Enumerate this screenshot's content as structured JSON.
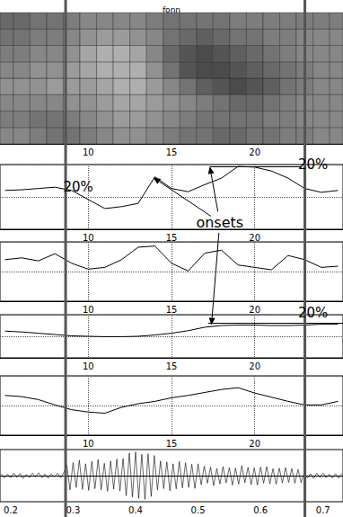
{
  "chart_data": [
    {
      "type": "heatmap",
      "title": "fonn",
      "x": [
        5,
        6,
        7,
        8,
        9,
        10,
        11,
        12,
        13,
        14,
        15,
        16,
        17,
        18,
        19,
        20,
        21,
        22,
        23,
        24,
        25
      ],
      "values": [
        [
          0.5,
          0.55,
          0.5,
          0.45,
          0.5,
          0.55,
          0.6,
          0.65
        ],
        [
          0.5,
          0.55,
          0.5,
          0.45,
          0.5,
          0.55,
          0.6,
          0.65
        ],
        [
          0.55,
          0.6,
          0.5,
          0.45,
          0.45,
          0.5,
          0.55,
          0.6
        ],
        [
          0.6,
          0.6,
          0.5,
          0.4,
          0.45,
          0.5,
          0.55,
          0.6
        ],
        [
          0.6,
          0.55,
          0.45,
          0.4,
          0.4,
          0.45,
          0.5,
          0.55
        ],
        [
          0.55,
          0.5,
          0.45,
          0.4,
          0.35,
          0.35,
          0.45,
          0.5
        ],
        [
          0.5,
          0.45,
          0.4,
          0.35,
          0.3,
          0.3,
          0.4,
          0.5
        ],
        [
          0.45,
          0.4,
          0.35,
          0.3,
          0.3,
          0.3,
          0.4,
          0.5
        ],
        [
          0.45,
          0.4,
          0.35,
          0.3,
          0.3,
          0.35,
          0.45,
          0.5
        ],
        [
          0.5,
          0.45,
          0.4,
          0.4,
          0.45,
          0.5,
          0.5,
          0.55
        ],
        [
          0.55,
          0.5,
          0.45,
          0.5,
          0.6,
          0.65,
          0.6,
          0.6
        ],
        [
          0.6,
          0.55,
          0.5,
          0.6,
          0.75,
          0.75,
          0.65,
          0.6
        ],
        [
          0.6,
          0.6,
          0.55,
          0.7,
          0.8,
          0.8,
          0.7,
          0.6
        ],
        [
          0.65,
          0.6,
          0.6,
          0.75,
          0.8,
          0.75,
          0.65,
          0.6
        ],
        [
          0.65,
          0.6,
          0.65,
          0.8,
          0.75,
          0.7,
          0.6,
          0.55
        ],
        [
          0.6,
          0.6,
          0.65,
          0.75,
          0.7,
          0.65,
          0.6,
          0.55
        ],
        [
          0.6,
          0.55,
          0.6,
          0.7,
          0.65,
          0.6,
          0.55,
          0.55
        ],
        [
          0.55,
          0.55,
          0.55,
          0.6,
          0.6,
          0.55,
          0.55,
          0.55
        ],
        [
          0.55,
          0.5,
          0.5,
          0.55,
          0.55,
          0.5,
          0.5,
          0.55
        ],
        [
          0.5,
          0.5,
          0.5,
          0.5,
          0.5,
          0.5,
          0.5,
          0.55
        ],
        [
          0.5,
          0.5,
          0.5,
          0.5,
          0.5,
          0.5,
          0.5,
          0.55
        ]
      ],
      "color_range": [
        0,
        1
      ],
      "xlim": [
        4.7,
        25.3
      ],
      "xticks": [
        10,
        15,
        20
      ],
      "ylim": [
        0,
        8
      ],
      "grid": false,
      "tick_labels": "x"
    },
    {
      "type": "line",
      "color": "#000000",
      "x": [
        5,
        6,
        7,
        8,
        9,
        10,
        11,
        12,
        13,
        14,
        15,
        16,
        17,
        18,
        19,
        20,
        21,
        22,
        23,
        24,
        25
      ],
      "values": [
        60,
        61,
        63,
        65,
        60,
        46,
        32,
        35,
        40,
        81,
        63,
        58,
        69,
        79,
        97,
        96,
        90,
        79,
        63,
        57,
        60
      ],
      "xlim": [
        4.7,
        25.3
      ],
      "xticks": [
        10,
        15,
        20
      ],
      "ylim": [
        0,
        100
      ],
      "yticks": [
        0,
        50,
        100
      ],
      "grid": true,
      "tick_labels": "x",
      "annotations": [
        {
          "text": "20%",
          "x": 9.4,
          "y": 65
        },
        {
          "text": "20%",
          "x": 23.5,
          "y": 100,
          "line": [
            17.3,
            22.8
          ],
          "line_y": 97
        }
      ],
      "onsets": [
        [
          13.9,
          80
        ],
        [
          17.3,
          97
        ]
      ],
      "onsets_label": {
        "text": "onsets",
        "x": 17.9,
        "y": 11
      }
    },
    {
      "type": "line",
      "color": "#000000",
      "x": [
        5,
        6,
        7,
        8,
        9,
        10,
        11,
        12,
        13,
        14,
        15,
        16,
        17,
        18,
        19,
        20,
        21,
        22,
        23,
        24,
        25
      ],
      "values": [
        70,
        73,
        68,
        80,
        64,
        54,
        57,
        70,
        91,
        93,
        64,
        51,
        81,
        86,
        61,
        57,
        53,
        77,
        70,
        57,
        59
      ],
      "xlim": [
        4.7,
        25.3
      ],
      "xticks": [
        10,
        15,
        20
      ],
      "ylim": [
        0,
        100
      ],
      "yticks": [
        0,
        50,
        100
      ],
      "grid": true,
      "tick_labels": "x"
    },
    {
      "type": "line",
      "color": "#000000",
      "x": [
        5,
        6,
        7,
        8,
        9,
        10,
        11,
        12,
        13,
        14,
        15,
        16,
        17,
        18,
        19,
        20,
        21,
        22,
        23,
        24,
        25
      ],
      "values": [
        62,
        60,
        57,
        54,
        51,
        50,
        49,
        49,
        50,
        53,
        57,
        63,
        71,
        75,
        76,
        76,
        75,
        75,
        76,
        78,
        78
      ],
      "xlim": [
        4.7,
        25.3
      ],
      "xticks": [
        10,
        15,
        20
      ],
      "ylim": [
        0,
        100
      ],
      "yticks": [
        0,
        50,
        100
      ],
      "grid": true,
      "tick_labels": "x",
      "annotations": [
        {
          "text": "20%",
          "x": 23.5,
          "y": 104,
          "line": [
            17.2,
            25.3
          ],
          "line_y": 80
        }
      ],
      "onsets": [
        [
          17.4,
          76
        ]
      ]
    },
    {
      "type": "line",
      "color": "#000000",
      "x": [
        5,
        6,
        7,
        8,
        9,
        10,
        11,
        12,
        13,
        14,
        15,
        16,
        17,
        18,
        19,
        20,
        21,
        22,
        23,
        24,
        25
      ],
      "values": [
        67,
        65,
        60,
        51,
        43,
        39,
        37,
        47,
        53,
        57,
        63,
        67,
        72,
        77,
        80,
        71,
        64,
        57,
        51,
        51,
        57
      ],
      "xlim": [
        4.7,
        25.3
      ],
      "xticks": [
        10,
        15,
        20
      ],
      "ylim": [
        0,
        100
      ],
      "yticks": [
        0,
        50,
        100
      ],
      "grid": true,
      "tick_labels": "x"
    },
    {
      "type": "line",
      "color": "#000000",
      "x": [
        0.185,
        0.19,
        0.195,
        0.2,
        0.205,
        0.21,
        0.215,
        0.22,
        0.225,
        0.23,
        0.235,
        0.24,
        0.245,
        0.25,
        0.255,
        0.26,
        0.265,
        0.27,
        0.275,
        0.28,
        0.285,
        0.29,
        0.295,
        0.3,
        0.305,
        0.31,
        0.315,
        0.32,
        0.325,
        0.33,
        0.335,
        0.34,
        0.345,
        0.35,
        0.355,
        0.36,
        0.365,
        0.37,
        0.375,
        0.38,
        0.385,
        0.39,
        0.395,
        0.4,
        0.405,
        0.41,
        0.415,
        0.42,
        0.425,
        0.43,
        0.435,
        0.44,
        0.445,
        0.45,
        0.455,
        0.46,
        0.465,
        0.47,
        0.475,
        0.48,
        0.485,
        0.49,
        0.495,
        0.5,
        0.505,
        0.51,
        0.515,
        0.52,
        0.525,
        0.53,
        0.535,
        0.54,
        0.545,
        0.55,
        0.555,
        0.56,
        0.565,
        0.57,
        0.575,
        0.58,
        0.585,
        0.59,
        0.595,
        0.6,
        0.605,
        0.61,
        0.615,
        0.62,
        0.625,
        0.63,
        0.635,
        0.64,
        0.645,
        0.65,
        0.655,
        0.66,
        0.665,
        0.67,
        0.675,
        0.68,
        0.685,
        0.69,
        0.695,
        0.7,
        0.705,
        0.71,
        0.715,
        0.72,
        0.725,
        0.73
      ],
      "values": [
        0.08,
        -0.1,
        0.06,
        -0.09,
        0.11,
        -0.07,
        0.09,
        -0.12,
        0.05,
        -0.08,
        0.1,
        -0.06,
        0.12,
        -0.09,
        0.07,
        -0.11,
        0.08,
        -0.05,
        0.1,
        -0.09,
        0.12,
        0.45,
        -0.6,
        0.55,
        -0.5,
        0.65,
        -0.58,
        0.5,
        -0.62,
        0.6,
        -0.55,
        0.68,
        -0.6,
        0.52,
        -0.66,
        0.62,
        -0.57,
        0.7,
        -0.64,
        0.72,
        -0.85,
        0.95,
        -0.9,
        1,
        -0.96,
        0.9,
        -1,
        0.92,
        -0.88,
        0.85,
        -0.6,
        0.62,
        -0.55,
        0.58,
        -0.64,
        0.5,
        -0.56,
        0.6,
        -0.52,
        0.55,
        -0.5,
        0.48,
        -0.54,
        0.5,
        -0.38,
        0.4,
        -0.32,
        0.36,
        -0.42,
        0.3,
        -0.35,
        0.38,
        -0.3,
        0.34,
        -0.4,
        0.32,
        -0.36,
        0.42,
        -0.3,
        0.35,
        -0.38,
        0.33,
        -0.4,
        0.36,
        -0.32,
        0.38,
        -0.34,
        0.3,
        -0.36,
        0.32,
        -0.3,
        0.34,
        -0.28,
        0.3,
        -0.32,
        0.26,
        -0.3,
        0.12,
        -0.1,
        0.08,
        -0.12,
        0.1,
        -0.07,
        0.11,
        -0.09,
        0.06,
        -0.1,
        0.08,
        -0.11,
        0.09
      ],
      "xlim": [
        0.183,
        0.732
      ],
      "xticks": [
        0.2,
        0.3,
        0.4,
        0.5,
        0.6,
        0.7
      ],
      "ylim": [
        -1.1,
        1.1
      ],
      "grid": false,
      "tick_labels": "x",
      "boundaries": [
        0.288,
        0.671
      ]
    }
  ]
}
